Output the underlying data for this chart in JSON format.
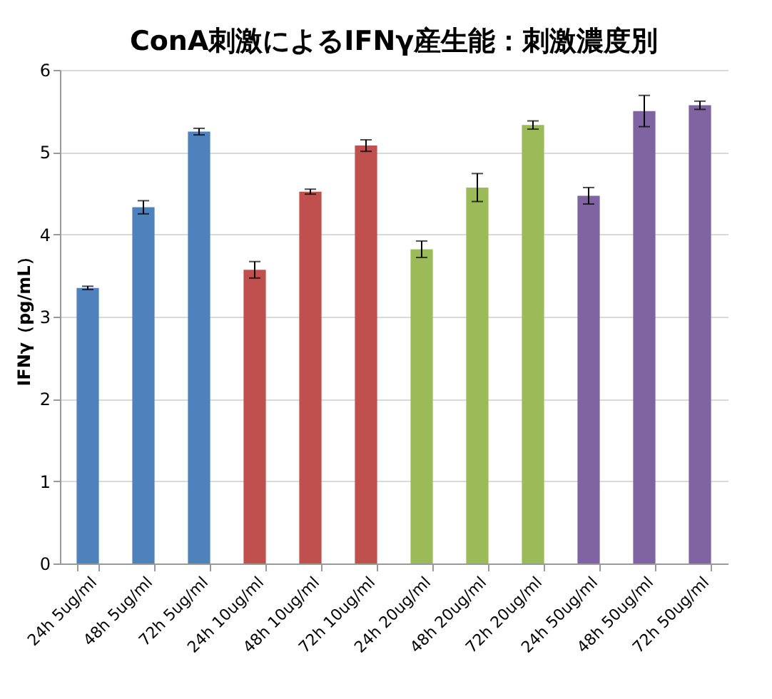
{
  "chart_data": {
    "type": "bar",
    "title": "ConA刺激によるIFNγ産生能：刺激濃度別",
    "ylabel": "IFNγ（pg/mL）",
    "categories": [
      "24h 5ug/ml",
      "48h 5ug/ml",
      "72h 5ug/ml",
      "24h 10ug/ml",
      "48h 10ug/ml",
      "72h 10ug/ml",
      "24h 20ug/ml",
      "48h 20ug/ml",
      "72h 20ug/ml",
      "24h 50ug/ml",
      "48h 50ug/ml",
      "72h 50ug/ml"
    ],
    "values": [
      3.35,
      4.33,
      5.25,
      3.57,
      4.52,
      5.08,
      3.82,
      4.57,
      5.33,
      4.47,
      5.5,
      5.57
    ],
    "errors": [
      0.02,
      0.08,
      0.04,
      0.1,
      0.03,
      0.07,
      0.1,
      0.17,
      0.05,
      0.1,
      0.19,
      0.05
    ],
    "colors": [
      "#4f81bd",
      "#4f81bd",
      "#4f81bd",
      "#c0504d",
      "#c0504d",
      "#c0504d",
      "#9bbb59",
      "#9bbb59",
      "#9bbb59",
      "#8064a2",
      "#8064a2",
      "#8064a2"
    ],
    "ylim": [
      0,
      6
    ],
    "yticks": [
      0,
      1,
      2,
      3,
      4,
      5,
      6
    ],
    "grid": "y"
  }
}
